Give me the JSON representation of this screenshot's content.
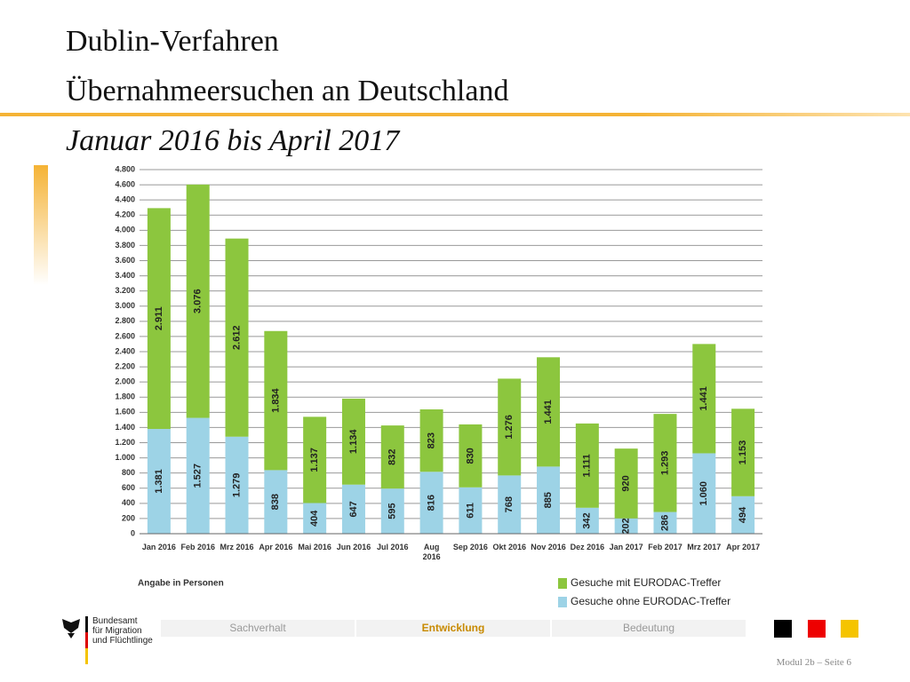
{
  "header": {
    "title": [
      "Dublin-Verfahren",
      "Übernahmeersuchen an Deutschland"
    ],
    "subtitle": "Januar 2016 bis April 2017"
  },
  "chart_data": {
    "type": "stacked-bar",
    "categories": [
      "Jan 2016",
      "Feb 2016",
      "Mrz 2016",
      "Apr 2016",
      "Mai 2016",
      "Jun 2016",
      "Jul 2016",
      "Aug 2016",
      "Sep 2016",
      "Okt 2016",
      "Nov 2016",
      "Dez 2016",
      "Jan 2017",
      "Feb 2017",
      "Mrz 2017",
      "Apr 2017"
    ],
    "series": [
      {
        "name": "Gesuche ohne EURODAC-Treffer",
        "color": "#9dd3e6",
        "values": [
          1381,
          1527,
          1279,
          838,
          404,
          647,
          595,
          816,
          611,
          768,
          885,
          342,
          202,
          286,
          1060,
          494
        ],
        "value_labels": [
          "1.381",
          "1.527",
          "1.279",
          "838",
          "404",
          "647",
          "595",
          "816",
          "611",
          "768",
          "885",
          "342",
          "202",
          "286",
          "1.060",
          "494"
        ]
      },
      {
        "name": "Gesuche mit EURODAC-Treffer",
        "color": "#8cc63e",
        "values": [
          2911,
          3076,
          2612,
          1834,
          1137,
          1134,
          832,
          823,
          830,
          1276,
          1441,
          1111,
          920,
          1293,
          1441,
          1153
        ],
        "value_labels": [
          "2.911",
          "3.076",
          "2.612",
          "1.834",
          "1.137",
          "1.134",
          "832",
          "823",
          "830",
          "1.276",
          "1.441",
          "1.111",
          "920",
          "1.293",
          "1.441",
          "1.153"
        ]
      }
    ],
    "ylim": [
      0,
      4800
    ],
    "yticks": [
      0,
      200,
      400,
      600,
      800,
      {
        "value": 1000,
        "label": "1.000"
      },
      {
        "value": 1200,
        "label": "1.200"
      },
      {
        "value": 1400,
        "label": "1.400"
      },
      {
        "value": 1600,
        "label": "1.600"
      },
      {
        "value": 1800,
        "label": "1.800"
      },
      {
        "value": 2000,
        "label": "2.000"
      },
      {
        "value": 2200,
        "label": "2.200"
      },
      {
        "value": 2400,
        "label": "2.400"
      },
      {
        "value": 2600,
        "label": "2.600"
      },
      {
        "value": 2800,
        "label": "2.800"
      },
      {
        "value": 3000,
        "label": "3.000"
      },
      {
        "value": 3200,
        "label": "3.200"
      },
      {
        "value": 3400,
        "label": "3.400"
      },
      {
        "value": 3600,
        "label": "3.600"
      },
      {
        "value": 3800,
        "label": "3.800"
      },
      {
        "value": 4000,
        "label": "4.000"
      },
      {
        "value": 4200,
        "label": "4.200"
      },
      {
        "value": 4400,
        "label": "4.400"
      },
      {
        "value": 4600,
        "label": "4.600"
      },
      {
        "value": 4800,
        "label": "4.800"
      }
    ],
    "grid": true,
    "note": "Angabe in Personen"
  },
  "footer": {
    "org": [
      "Bundesamt",
      "für Migration",
      "und Flüchtlinge"
    ],
    "tabs": [
      "Sachverhalt",
      "Entwicklung",
      "Bedeutung"
    ],
    "page": "Modul 2b – Seite 6"
  }
}
